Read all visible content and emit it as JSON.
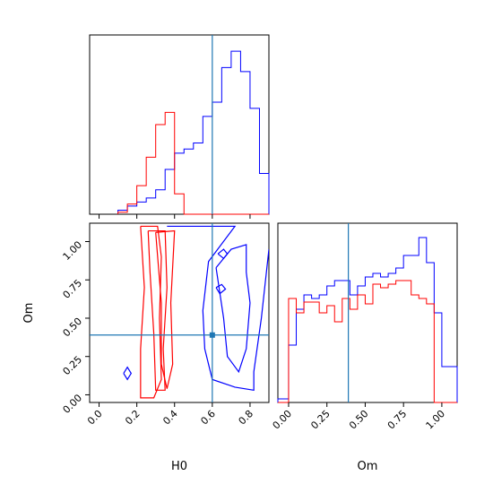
{
  "colors": {
    "series_a": "#0000ff",
    "series_b": "#ff0000",
    "truth": "#1f77b4",
    "frame": "#000000"
  },
  "chart_data": [
    {
      "type": "histogram",
      "panel": "H0 marginal",
      "x_range": [
        -0.05,
        0.9
      ],
      "truth_x": 0.6,
      "bin_edges": [
        0.1,
        0.15,
        0.2,
        0.25,
        0.3,
        0.35,
        0.4,
        0.45,
        0.5,
        0.55,
        0.6,
        0.65,
        0.7,
        0.75,
        0.8,
        0.85,
        0.9
      ],
      "series": [
        {
          "color": "blue",
          "counts": [
            0.02,
            0.04,
            0.06,
            0.08,
            0.12,
            0.22,
            0.3,
            0.32,
            0.35,
            0.48,
            0.55,
            0.72,
            0.8,
            0.7,
            0.52,
            0.2
          ]
        },
        {
          "color": "red",
          "counts": [
            0.01,
            0.05,
            0.14,
            0.28,
            0.44,
            0.5,
            0.1,
            0,
            0,
            0,
            0,
            0,
            0,
            0,
            0,
            0
          ]
        }
      ]
    },
    {
      "type": "contour",
      "panel": "Om vs H0",
      "x_range": [
        -0.05,
        0.9
      ],
      "y_range": [
        -0.05,
        1.12
      ],
      "truth": [
        0.6,
        0.39
      ],
      "xlabel": "H0",
      "ylabel": "Om",
      "xticks": [
        "0.0",
        "0.2",
        "0.4",
        "0.6",
        "0.8"
      ],
      "yticks": [
        "0.00",
        "0.25",
        "0.50",
        "0.75",
        "1.00"
      ],
      "series": [
        {
          "color": "red",
          "contours": [
            [
              [
                0.22,
                1.1
              ],
              [
                0.31,
                1.1
              ],
              [
                0.33,
                0.9
              ],
              [
                0.32,
                0.5
              ],
              [
                0.33,
                0.1
              ],
              [
                0.29,
                -0.02
              ],
              [
                0.22,
                -0.02
              ],
              [
                0.22,
                0.3
              ],
              [
                0.24,
                0.7
              ],
              [
                0.22,
                1.1
              ]
            ],
            [
              [
                0.26,
                1.07
              ],
              [
                0.35,
                1.07
              ],
              [
                0.36,
                0.7
              ],
              [
                0.34,
                0.3
              ],
              [
                0.35,
                0.03
              ],
              [
                0.3,
                0.03
              ],
              [
                0.29,
                0.4
              ],
              [
                0.27,
                0.8
              ],
              [
                0.26,
                1.07
              ]
            ],
            [
              [
                0.3,
                1.06
              ],
              [
                0.4,
                1.07
              ],
              [
                0.38,
                0.6
              ],
              [
                0.39,
                0.2
              ],
              [
                0.36,
                0.04
              ],
              [
                0.33,
                0.2
              ],
              [
                0.33,
                0.6
              ],
              [
                0.3,
                1.06
              ]
            ]
          ]
        },
        {
          "color": "blue",
          "contours": [
            [
              [
                0.36,
                1.1
              ],
              [
                0.72,
                1.1
              ],
              [
                0.58,
                0.87
              ],
              [
                0.55,
                0.55
              ],
              [
                0.56,
                0.3
              ],
              [
                0.6,
                0.1
              ],
              [
                0.72,
                0.05
              ],
              [
                0.82,
                0.03
              ],
              [
                0.82,
                0.15
              ],
              [
                0.86,
                0.5
              ],
              [
                0.9,
                0.95
              ]
            ],
            [
              [
                0.62,
                0.83
              ],
              [
                0.7,
                0.95
              ],
              [
                0.78,
                0.98
              ],
              [
                0.78,
                0.8
              ],
              [
                0.8,
                0.6
              ],
              [
                0.78,
                0.3
              ],
              [
                0.74,
                0.15
              ],
              [
                0.68,
                0.25
              ],
              [
                0.66,
                0.5
              ],
              [
                0.62,
                0.83
              ]
            ],
            [
              [
                0.13,
                0.14
              ],
              [
                0.15,
                0.18
              ],
              [
                0.17,
                0.14
              ],
              [
                0.15,
                0.1
              ],
              [
                0.13,
                0.14
              ]
            ],
            [
              [
                0.63,
                0.92
              ],
              [
                0.66,
                0.95
              ],
              [
                0.68,
                0.92
              ],
              [
                0.66,
                0.89
              ],
              [
                0.63,
                0.92
              ]
            ],
            [
              [
                0.62,
                0.7
              ],
              [
                0.65,
                0.72
              ],
              [
                0.67,
                0.69
              ],
              [
                0.64,
                0.66
              ],
              [
                0.62,
                0.7
              ]
            ]
          ]
        }
      ]
    },
    {
      "type": "histogram",
      "panel": "Om marginal",
      "x_range": [
        -0.07,
        1.1
      ],
      "truth_x": 0.39,
      "xlabel": "Om",
      "xticks": [
        "0.00",
        "0.25",
        "0.50",
        "0.75",
        "1.00"
      ],
      "bin_edges": [
        -0.07,
        0,
        0.05,
        0.1,
        0.15,
        0.2,
        0.25,
        0.3,
        0.35,
        0.4,
        0.45,
        0.5,
        0.55,
        0.6,
        0.65,
        0.7,
        0.75,
        0.8,
        0.85,
        0.9,
        0.95,
        1.0,
        1.05,
        1.1
      ],
      "series": [
        {
          "color": "blue",
          "counts": [
            0.02,
            0.32,
            0.52,
            0.6,
            0.58,
            0.6,
            0.65,
            0.68,
            0.68,
            0.6,
            0.65,
            0.7,
            0.72,
            0.7,
            0.72,
            0.75,
            0.82,
            0.82,
            0.92,
            0.78,
            0.5,
            0.2,
            0.2
          ]
        },
        {
          "color": "red",
          "counts": [
            0,
            0.58,
            0.5,
            0.56,
            0.56,
            0.5,
            0.54,
            0.45,
            0.58,
            0.52,
            0.6,
            0.55,
            0.66,
            0.64,
            0.66,
            0.68,
            0.68,
            0.6,
            0.58,
            0.55,
            0,
            0,
            0
          ]
        }
      ]
    }
  ]
}
